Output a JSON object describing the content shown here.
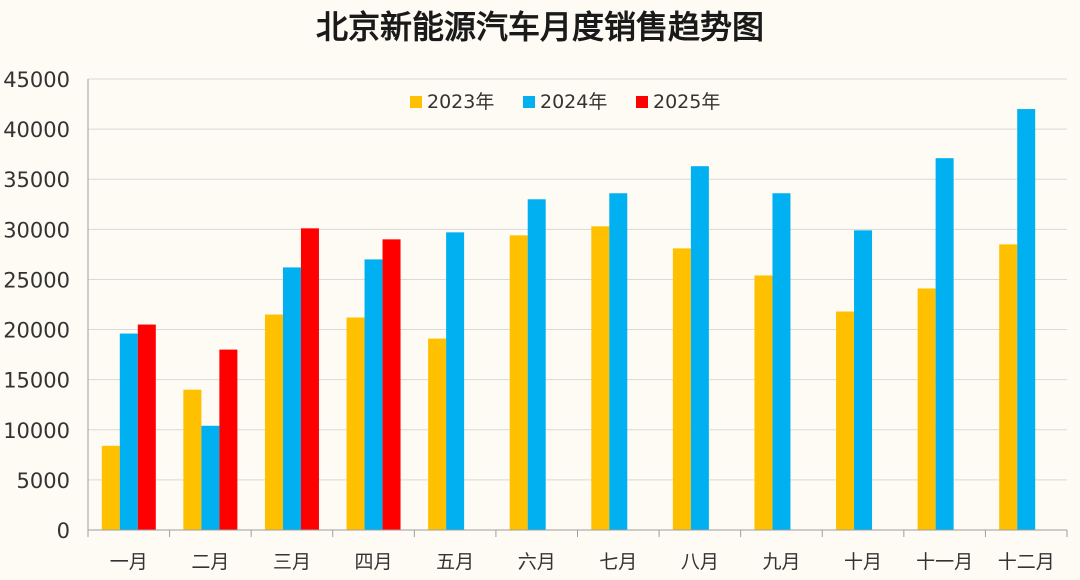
{
  "chart_data": {
    "type": "bar",
    "title": "北京新能源汽车月度销售趋势图",
    "xlabel": "",
    "ylabel": "",
    "ylim": [
      0,
      45000
    ],
    "yticks": [
      0,
      5000,
      10000,
      15000,
      20000,
      25000,
      30000,
      35000,
      40000,
      45000
    ],
    "grid": true,
    "legend_position": "top-center",
    "categories": [
      "一月",
      "二月",
      "三月",
      "四月",
      "五月",
      "六月",
      "七月",
      "八月",
      "九月",
      "十月",
      "十一月",
      "十二月"
    ],
    "series": [
      {
        "name": "2023年",
        "color": "#ffc000",
        "values": [
          8400,
          14000,
          21500,
          21200,
          19100,
          29400,
          30300,
          28100,
          25400,
          21800,
          24100,
          28500
        ]
      },
      {
        "name": "2024年",
        "color": "#00b0f0",
        "values": [
          19600,
          10400,
          26200,
          27000,
          29700,
          33000,
          33600,
          36300,
          33600,
          29900,
          37100,
          42000
        ]
      },
      {
        "name": "2025年",
        "color": "#ff0000",
        "values": [
          20500,
          18000,
          30100,
          29000,
          null,
          null,
          null,
          null,
          null,
          null,
          null,
          null
        ]
      }
    ]
  }
}
